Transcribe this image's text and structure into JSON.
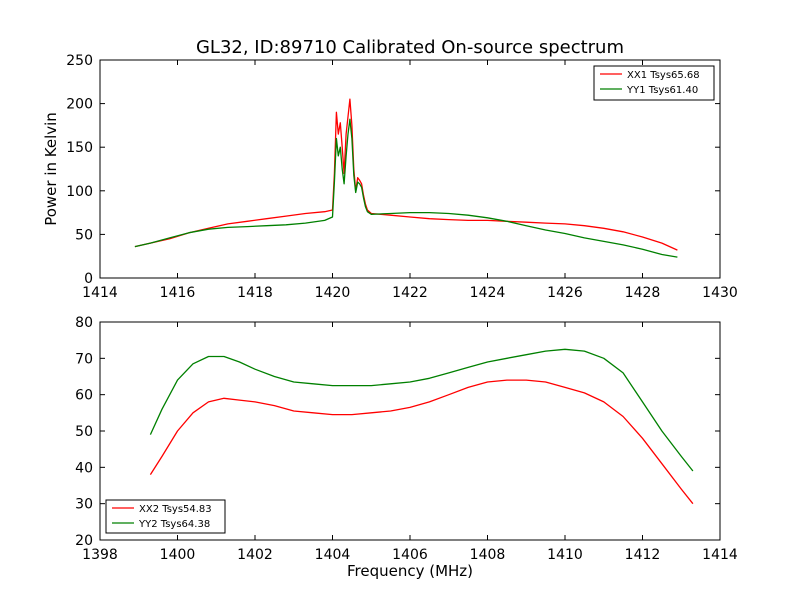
{
  "window": {
    "title": "GL32, ID:89710 Calibrated On-source spectrum"
  },
  "chart_data": [
    {
      "type": "line",
      "title": "GL32, ID:89710 Calibrated On-source spectrum",
      "xlabel": "",
      "ylabel": "Power in Kelvin",
      "xlim": [
        1414,
        1430
      ],
      "ylim": [
        0,
        250
      ],
      "xticks": [
        1414,
        1416,
        1418,
        1420,
        1422,
        1424,
        1426,
        1428,
        1430
      ],
      "yticks": [
        0,
        50,
        100,
        150,
        200,
        250
      ],
      "xtick_labels": [
        "1414",
        "1416",
        "1418",
        "1420",
        "1422",
        "1424",
        "1426",
        "1428",
        "1430"
      ],
      "ytick_labels": [
        "0",
        "50",
        "100",
        "150",
        "200",
        "250"
      ],
      "legend_position": "top-right",
      "grid": false,
      "series": [
        {
          "name": "XX1 Tsys65.68",
          "color": "#ff0000",
          "x": [
            1414.9,
            1415.3,
            1415.8,
            1416.3,
            1416.8,
            1417.3,
            1417.8,
            1418.3,
            1418.8,
            1419.3,
            1419.8,
            1420.0,
            1420.05,
            1420.1,
            1420.15,
            1420.2,
            1420.25,
            1420.3,
            1420.35,
            1420.4,
            1420.45,
            1420.5,
            1420.55,
            1420.6,
            1420.65,
            1420.7,
            1420.75,
            1420.8,
            1420.85,
            1420.9,
            1421.0,
            1421.5,
            1422.0,
            1422.5,
            1423.0,
            1423.5,
            1424.0,
            1424.5,
            1425.0,
            1425.5,
            1426.0,
            1426.5,
            1427.0,
            1427.5,
            1428.0,
            1428.5,
            1428.9
          ],
          "values": [
            36,
            40,
            45,
            52,
            57,
            62,
            65,
            68,
            71,
            74,
            76,
            78,
            120,
            190,
            165,
            178,
            150,
            120,
            165,
            185,
            205,
            175,
            125,
            100,
            115,
            112,
            108,
            95,
            85,
            78,
            74,
            72,
            70,
            68,
            67,
            66,
            66,
            65,
            64,
            63,
            62,
            60,
            57,
            53,
            47,
            40,
            32
          ]
        },
        {
          "name": "YY1 Tsys61.40",
          "color": "#008000",
          "x": [
            1414.9,
            1415.3,
            1415.8,
            1416.3,
            1416.8,
            1417.3,
            1417.8,
            1418.3,
            1418.8,
            1419.3,
            1419.8,
            1420.0,
            1420.05,
            1420.1,
            1420.15,
            1420.2,
            1420.25,
            1420.3,
            1420.35,
            1420.4,
            1420.45,
            1420.5,
            1420.55,
            1420.6,
            1420.65,
            1420.7,
            1420.75,
            1420.8,
            1420.85,
            1420.9,
            1421.0,
            1421.5,
            1422.0,
            1422.5,
            1423.0,
            1423.5,
            1424.0,
            1424.5,
            1425.0,
            1425.5,
            1426.0,
            1426.5,
            1427.0,
            1427.5,
            1428.0,
            1428.5,
            1428.9
          ],
          "values": [
            36,
            40,
            46,
            52,
            56,
            58,
            59,
            60,
            61,
            63,
            66,
            70,
            110,
            160,
            140,
            150,
            125,
            108,
            140,
            165,
            182,
            160,
            118,
            98,
            110,
            108,
            104,
            92,
            82,
            76,
            73,
            74,
            75,
            75,
            74,
            72,
            69,
            65,
            60,
            55,
            51,
            46,
            42,
            38,
            33,
            27,
            24
          ]
        }
      ]
    },
    {
      "type": "line",
      "title": "",
      "xlabel": "Frequency (MHz)",
      "ylabel": "",
      "xlim": [
        1398,
        1414
      ],
      "ylim": [
        20,
        80
      ],
      "xticks": [
        1398,
        1400,
        1402,
        1404,
        1406,
        1408,
        1410,
        1412,
        1414
      ],
      "yticks": [
        20,
        30,
        40,
        50,
        60,
        70,
        80
      ],
      "xtick_labels": [
        "1398",
        "1400",
        "1402",
        "1404",
        "1406",
        "1408",
        "1410",
        "1412",
        "1414"
      ],
      "ytick_labels": [
        "20",
        "30",
        "40",
        "50",
        "60",
        "70",
        "80"
      ],
      "legend_position": "bottom-left",
      "grid": false,
      "series": [
        {
          "name": "XX2 Tsys54.83",
          "color": "#ff0000",
          "x": [
            1399.3,
            1399.6,
            1400.0,
            1400.4,
            1400.8,
            1401.2,
            1401.6,
            1402.0,
            1402.5,
            1403.0,
            1403.5,
            1404.0,
            1404.5,
            1405.0,
            1405.5,
            1406.0,
            1406.5,
            1407.0,
            1407.5,
            1408.0,
            1408.5,
            1409.0,
            1409.5,
            1410.0,
            1410.5,
            1411.0,
            1411.5,
            1412.0,
            1412.5,
            1413.0,
            1413.3
          ],
          "values": [
            38,
            43,
            50,
            55,
            58,
            59,
            58.5,
            58,
            57,
            55.5,
            55,
            54.5,
            54.5,
            55,
            55.5,
            56.5,
            58,
            60,
            62,
            63.5,
            64,
            64,
            63.5,
            62,
            60.5,
            58,
            54,
            48,
            41,
            34,
            30
          ]
        },
        {
          "name": "YY2 Tsys64.38",
          "color": "#008000",
          "x": [
            1399.3,
            1399.6,
            1400.0,
            1400.4,
            1400.8,
            1401.2,
            1401.6,
            1402.0,
            1402.5,
            1403.0,
            1403.5,
            1404.0,
            1404.5,
            1405.0,
            1405.5,
            1406.0,
            1406.5,
            1407.0,
            1407.5,
            1408.0,
            1408.5,
            1409.0,
            1409.5,
            1410.0,
            1410.5,
            1411.0,
            1411.5,
            1412.0,
            1412.5,
            1413.0,
            1413.3
          ],
          "values": [
            49,
            56,
            64,
            68.5,
            70.5,
            70.5,
            69,
            67,
            65,
            63.5,
            63,
            62.5,
            62.5,
            62.5,
            63,
            63.5,
            64.5,
            66,
            67.5,
            69,
            70,
            71,
            72,
            72.5,
            72,
            70,
            66,
            58,
            50,
            43,
            39
          ]
        }
      ]
    }
  ]
}
